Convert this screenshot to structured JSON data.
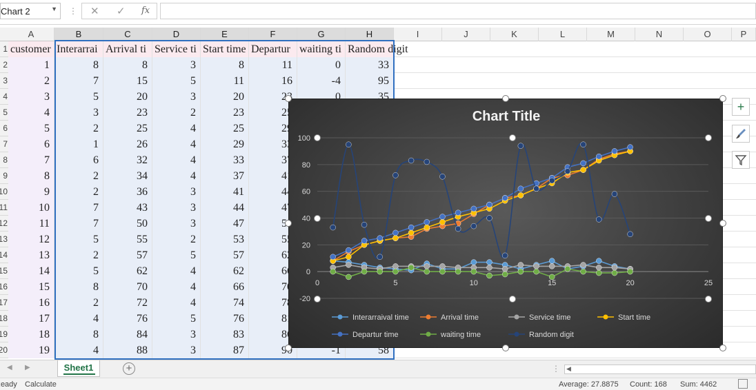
{
  "name_box": {
    "value": "Chart 2"
  },
  "formula": {
    "fx_label": "fx",
    "value": ""
  },
  "columns": [
    "A",
    "B",
    "C",
    "D",
    "E",
    "F",
    "G",
    "H",
    "I",
    "J",
    "K",
    "L",
    "M",
    "N",
    "O",
    "P"
  ],
  "row_numbers": [
    "1",
    "2",
    "3",
    "4",
    "5",
    "6",
    "7",
    "8",
    "9",
    "10",
    "11",
    "12",
    "13",
    "14",
    "15",
    "16",
    "17",
    "18",
    "19",
    "20"
  ],
  "headers": [
    "customer",
    "Interarrai",
    "Arrival ti",
    "Service ti",
    "Start time",
    "Departur",
    "waiting ti",
    "Random digit"
  ],
  "table_rows": [
    [
      "1",
      "8",
      "8",
      "3",
      "8",
      "11",
      "0",
      "33"
    ],
    [
      "2",
      "7",
      "15",
      "5",
      "11",
      "16",
      "-4",
      "95"
    ],
    [
      "3",
      "5",
      "20",
      "3",
      "20",
      "23",
      "0",
      "35"
    ],
    [
      "4",
      "3",
      "23",
      "2",
      "23",
      "25",
      "",
      ""
    ],
    [
      "5",
      "2",
      "25",
      "4",
      "25",
      "29",
      "",
      ""
    ],
    [
      "6",
      "1",
      "26",
      "4",
      "29",
      "33",
      "",
      ""
    ],
    [
      "7",
      "6",
      "32",
      "4",
      "33",
      "37",
      "",
      ""
    ],
    [
      "8",
      "2",
      "34",
      "4",
      "37",
      "41",
      "",
      ""
    ],
    [
      "9",
      "2",
      "36",
      "3",
      "41",
      "44",
      "",
      ""
    ],
    [
      "10",
      "7",
      "43",
      "3",
      "44",
      "47",
      "",
      ""
    ],
    [
      "11",
      "7",
      "50",
      "3",
      "47",
      "50",
      "",
      ""
    ],
    [
      "12",
      "5",
      "55",
      "2",
      "53",
      "55",
      "",
      ""
    ],
    [
      "13",
      "2",
      "57",
      "5",
      "57",
      "62",
      "",
      ""
    ],
    [
      "14",
      "5",
      "62",
      "4",
      "62",
      "66",
      "",
      ""
    ],
    [
      "15",
      "8",
      "70",
      "4",
      "66",
      "70",
      "",
      ""
    ],
    [
      "16",
      "2",
      "72",
      "4",
      "74",
      "78",
      "",
      ""
    ],
    [
      "17",
      "4",
      "76",
      "5",
      "76",
      "81",
      "",
      ""
    ],
    [
      "18",
      "8",
      "84",
      "3",
      "83",
      "86",
      "",
      ""
    ],
    [
      "19",
      "4",
      "88",
      "3",
      "87",
      "90",
      "-1",
      "58"
    ]
  ],
  "chart_data": {
    "type": "line",
    "title": "Chart Title",
    "xlabel": "",
    "ylabel": "",
    "x": [
      1,
      2,
      3,
      4,
      5,
      6,
      7,
      8,
      9,
      10,
      11,
      12,
      13,
      14,
      15,
      16,
      17,
      18,
      19,
      20
    ],
    "xlim": [
      0,
      25
    ],
    "ylim": [
      -20,
      100
    ],
    "x_ticks": [
      "0",
      "5",
      "10",
      "15",
      "20",
      "25"
    ],
    "y_ticks": [
      "-20",
      "0",
      "20",
      "40",
      "60",
      "80",
      "100"
    ],
    "grid": true,
    "legend_position": "bottom",
    "series": [
      {
        "name": "Interarraival time",
        "color": "#5b9bd5",
        "values": [
          8,
          7,
          5,
          3,
          2,
          1,
          6,
          2,
          2,
          7,
          7,
          5,
          2,
          5,
          8,
          2,
          4,
          8,
          4,
          2
        ]
      },
      {
        "name": "Arrival time",
        "color": "#ed7d31",
        "values": [
          8,
          15,
          20,
          23,
          25,
          26,
          32,
          34,
          36,
          43,
          50,
          55,
          57,
          62,
          70,
          72,
          76,
          84,
          88,
          90
        ]
      },
      {
        "name": "Service time",
        "color": "#a5a5a5",
        "values": [
          3,
          5,
          3,
          2,
          4,
          4,
          4,
          4,
          3,
          3,
          3,
          2,
          5,
          4,
          4,
          4,
          5,
          3,
          3,
          2
        ]
      },
      {
        "name": "Start time",
        "color": "#ffc000",
        "values": [
          8,
          11,
          20,
          23,
          25,
          29,
          33,
          37,
          41,
          44,
          47,
          53,
          57,
          62,
          66,
          74,
          76,
          83,
          87,
          90
        ]
      },
      {
        "name": "Departur time",
        "color": "#4472c4",
        "values": [
          11,
          16,
          23,
          25,
          29,
          33,
          37,
          41,
          44,
          47,
          50,
          55,
          62,
          66,
          70,
          78,
          81,
          86,
          90,
          93
        ]
      },
      {
        "name": "waiting time",
        "color": "#70ad47",
        "values": [
          0,
          -4,
          0,
          0,
          0,
          3,
          0,
          0,
          0,
          0,
          -3,
          -2,
          0,
          0,
          -4,
          2,
          0,
          -1,
          -1,
          0
        ]
      },
      {
        "name": "Random digit",
        "color": "#264478",
        "values": [
          33,
          95,
          35,
          11,
          72,
          83,
          82,
          71,
          32,
          34,
          40,
          12,
          94,
          62,
          68,
          75,
          95,
          39,
          58,
          28
        ]
      }
    ]
  },
  "sheet": {
    "tab_label": "Sheet1"
  },
  "status": {
    "ready": "Ready",
    "calculate": "Calculate",
    "average": "Average: 27.8875",
    "count": "Count: 168",
    "sum": "Sum: 4462"
  }
}
